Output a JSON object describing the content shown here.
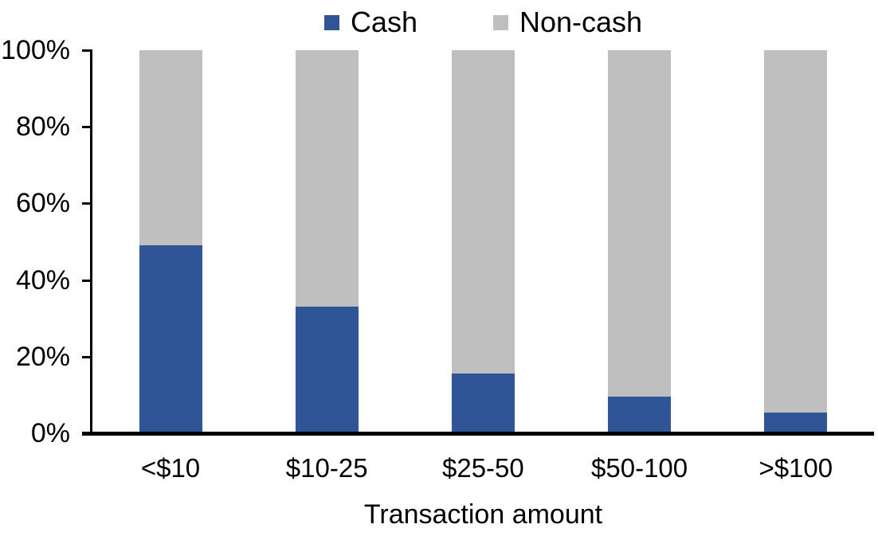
{
  "chart_data": {
    "type": "bar",
    "stacked": true,
    "title": "",
    "xlabel": "Transaction amount",
    "ylabel": "",
    "categories": [
      "<$10",
      "$10-25",
      "$25-50",
      "$50-100",
      ">$100"
    ],
    "series": [
      {
        "name": "Cash",
        "color": "#2F5597",
        "values": [
          49,
          33,
          15.5,
          9.5,
          5.5
        ]
      },
      {
        "name": "Non-cash",
        "color": "#BFBFBF",
        "values": [
          51,
          67,
          84.5,
          90.5,
          94.5
        ]
      }
    ],
    "ylim": [
      0,
      100
    ],
    "y_ticks": [
      0,
      20,
      40,
      60,
      80,
      100
    ],
    "y_tick_labels": [
      "0%",
      "20%",
      "40%",
      "60%",
      "80%",
      "100%"
    ],
    "grid": false,
    "legend_position": "top",
    "axis_color": "#000000"
  }
}
